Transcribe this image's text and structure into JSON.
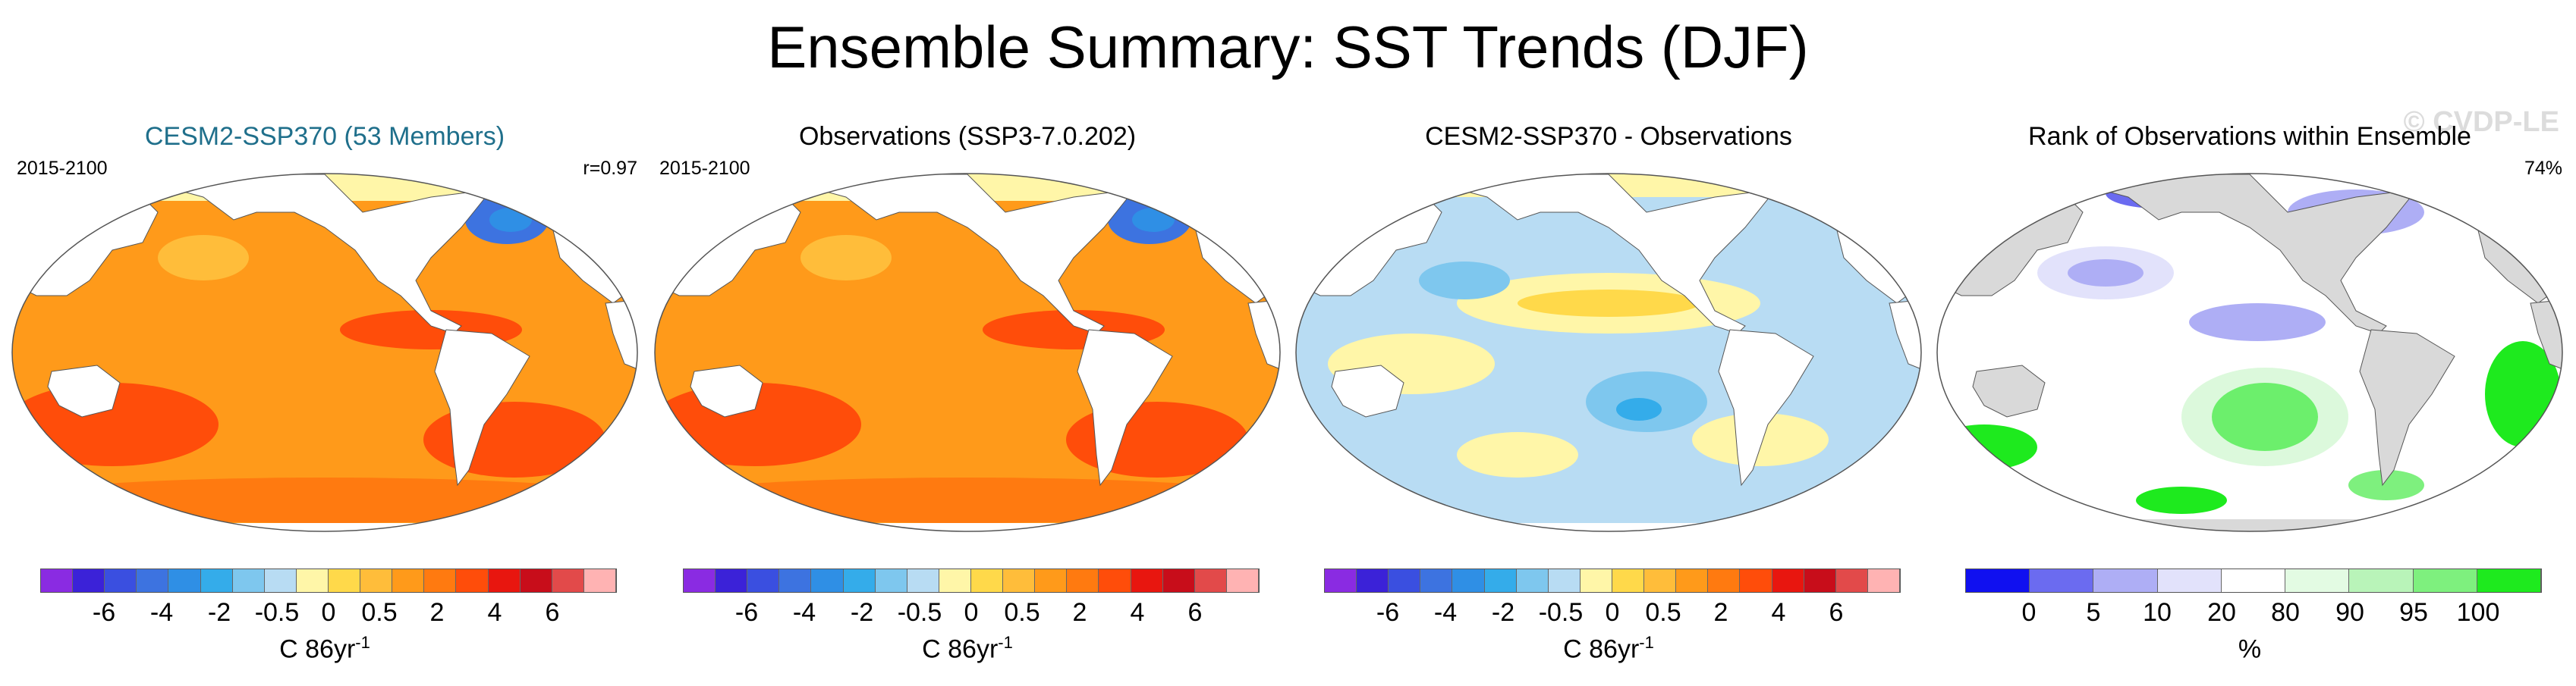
{
  "title": "Ensemble Summary: SST Trends (DJF)",
  "watermark": "© CVDP-LE",
  "colors": {
    "land": "#ffffff",
    "land_rank": "#d9d9d9",
    "coast": "#555555",
    "sst_scale": [
      "#8a2be2",
      "#3b22d8",
      "#3a4fe0",
      "#3d73e0",
      "#2f8fe5",
      "#34acea",
      "#7ec7ee",
      "#b8dcf3",
      "#fff6a8",
      "#ffd94a",
      "#ffbd3a",
      "#ff9a1a",
      "#ff7a10",
      "#ff4d0a",
      "#e8160f",
      "#c80d1a",
      "#e24a4a",
      "#ffb3b3"
    ],
    "rank_scale": [
      "#1010f0",
      "#6b6bf0",
      "#aeaef5",
      "#e2e2fb",
      "#ffffff",
      "#e3fbe3",
      "#b9f4b9",
      "#7ef07e",
      "#1eea1e"
    ]
  },
  "panels": [
    {
      "title": "CESM2-SSP370 (53 Members)",
      "period": "2015-2100",
      "stat": "r=0.97",
      "colorbar": {
        "ticks": [
          "-6",
          "-4",
          "-2",
          "-0.5",
          "0",
          "0.5",
          "2",
          "4",
          "6"
        ],
        "label": "C 86yr",
        "label_exp": "-1"
      }
    },
    {
      "title": "Observations (SSP3-7.0.202)",
      "period": "2015-2100",
      "stat": "",
      "colorbar": {
        "ticks": [
          "-6",
          "-4",
          "-2",
          "-0.5",
          "0",
          "0.5",
          "2",
          "4",
          "6"
        ],
        "label": "C 86yr",
        "label_exp": "-1"
      }
    },
    {
      "title": "CESM2-SSP370 - Observations",
      "period": "",
      "stat": "",
      "colorbar": {
        "ticks": [
          "-6",
          "-4",
          "-2",
          "-0.5",
          "0",
          "0.5",
          "2",
          "4",
          "6"
        ],
        "label": "C 86yr",
        "label_exp": "-1"
      }
    },
    {
      "title": "Rank of Observations within Ensemble",
      "period": "",
      "stat": "74%",
      "colorbar": {
        "ticks": [
          "0",
          "5",
          "10",
          "20",
          "80",
          "90",
          "95",
          "100"
        ],
        "label": "%",
        "label_exp": ""
      }
    }
  ]
}
